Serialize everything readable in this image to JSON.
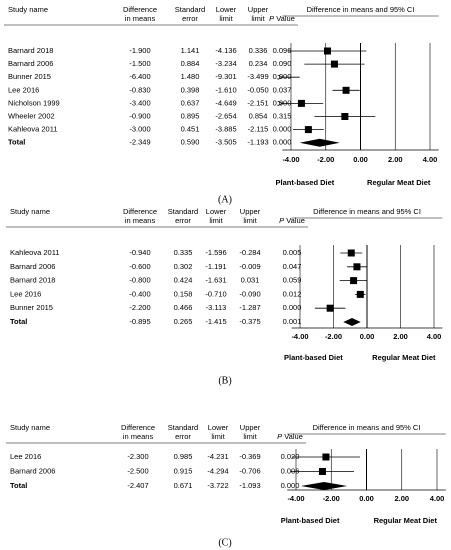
{
  "chart_data": [
    {
      "type": "forest",
      "caption": "(A)",
      "headers": {
        "study": "Study name",
        "diff": [
          "Difference",
          "in means"
        ],
        "se": [
          "Standard",
          "error"
        ],
        "lower": [
          "Lower",
          "limit"
        ],
        "upper": [
          "Upper",
          "limit"
        ],
        "p_italic": "P",
        "p_rest": "Value",
        "plot": "Difference in means and 95% CI"
      },
      "categories": [
        "Barnard 2018",
        "Barnard 2006",
        "Bunner 2015",
        "Lee 2016",
        "Nicholson 1999",
        "Wheeler 2002",
        "Kahleova 2011"
      ],
      "values": [
        -1.9,
        -1.5,
        -6.4,
        -0.83,
        -3.4,
        -0.9,
        -3.0
      ],
      "value_labels": [
        "-1.900",
        "-1.500",
        "-6.400",
        "-0.830",
        "-3.400",
        "-0.900",
        "-3.000"
      ],
      "se_labels": [
        "1.141",
        "0.884",
        "1.480",
        "0.398",
        "0.637",
        "0.895",
        "0.451"
      ],
      "lower": [
        -4.136,
        -3.234,
        -9.301,
        -1.61,
        -4.649,
        -2.654,
        -3.885
      ],
      "lower_labels": [
        "-4.136",
        "-3.234",
        "-9.301",
        "-1.610",
        "-4.649",
        "-2.654",
        "-3.885"
      ],
      "upper": [
        0.336,
        0.234,
        -3.499,
        -0.05,
        -2.151,
        0.854,
        -2.115
      ],
      "upper_labels": [
        "0.336",
        "0.234",
        "-3.499",
        "-0.050",
        "-2.151",
        "0.854",
        "-2.115"
      ],
      "p_labels": [
        "0.096",
        "0.090",
        "0.000",
        "0.037",
        "0.000",
        "0.315",
        "0.000"
      ],
      "total": {
        "name": "Total",
        "value": -2.349,
        "value_label": "-2.349",
        "se_label": "0.590",
        "lower": -3.505,
        "lower_label": "-3.505",
        "upper": -1.193,
        "upper_label": "-1.193",
        "p_label": "0.000"
      },
      "xlim": [
        -4.5,
        4.5
      ],
      "xticks": [
        {
          "value": -4,
          "label": "-4.00"
        },
        {
          "value": -2,
          "label": "-2.00"
        },
        {
          "value": 0,
          "label": "0.00"
        },
        {
          "value": 2,
          "label": "2.00"
        },
        {
          "value": 4,
          "label": "4.00"
        }
      ],
      "favours": [
        "Plant-based Diet",
        "Regular Meat Diet"
      ]
    },
    {
      "type": "forest",
      "caption": "(B)",
      "headers": {
        "study": "Study name",
        "diff": [
          "Difference",
          "in means"
        ],
        "se": [
          "Standard",
          "error"
        ],
        "lower": [
          "Lower",
          "limit"
        ],
        "upper": [
          "Upper",
          "limit"
        ],
        "p_italic": "P",
        "p_rest": "Value",
        "plot": "Difference in means and 95% CI"
      },
      "categories": [
        "Kahleova 2011",
        "Barnard 2006",
        "Barnard 2018",
        "Lee 2016",
        "Bunner 2015"
      ],
      "values": [
        -0.94,
        -0.6,
        -0.8,
        -0.4,
        -2.2
      ],
      "value_labels": [
        "-0.940",
        "-0.600",
        "-0.800",
        "-0.400",
        "-2.200"
      ],
      "se_labels": [
        "0.335",
        "0.302",
        "0.424",
        "0.158",
        "0.466"
      ],
      "lower": [
        -1.596,
        -1.191,
        -1.631,
        -0.71,
        -3.113
      ],
      "lower_labels": [
        "-1.596",
        "-1.191",
        "-1.631",
        "-0.710",
        "-3.113"
      ],
      "upper": [
        -0.284,
        -0.009,
        0.031,
        -0.09,
        -1.287
      ],
      "upper_labels": [
        "-0.284",
        "-0.009",
        "0.031",
        "-0.090",
        "-1.287"
      ],
      "p_labels": [
        "0.005",
        "0.047",
        "0.059",
        "0.012",
        "0.000"
      ],
      "total": {
        "name": "Total",
        "value": -0.895,
        "value_label": "-0.895",
        "se_label": "0.265",
        "lower": -1.415,
        "lower_label": "-1.415",
        "upper": -0.375,
        "upper_label": "-0.375",
        "p_label": "0.001"
      },
      "xlim": [
        -4.5,
        4.5
      ],
      "xticks": [
        {
          "value": -4,
          "label": "-4.00"
        },
        {
          "value": -2,
          "label": "-2.00"
        },
        {
          "value": 0,
          "label": "0.00"
        },
        {
          "value": 2,
          "label": "2.00"
        },
        {
          "value": 4,
          "label": "4.00"
        }
      ],
      "favours": [
        "Plant-based Diet",
        "Regular Meat Diet"
      ]
    },
    {
      "type": "forest",
      "caption": "(C)",
      "headers": {
        "study": "Study name",
        "diff": [
          "Difference",
          "in means"
        ],
        "se": [
          "Standard",
          "error"
        ],
        "lower": [
          "Lower",
          "limit"
        ],
        "upper": [
          "Upper",
          "limit"
        ],
        "p_italic": "P",
        "p_rest": "Value",
        "plot": "Difference in means and 95% CI"
      },
      "categories": [
        "Lee 2016",
        "Barnard 2006"
      ],
      "values": [
        -2.3,
        -2.5
      ],
      "value_labels": [
        "-2.300",
        "-2.500"
      ],
      "se_labels": [
        "0.985",
        "0.915"
      ],
      "lower": [
        -4.231,
        -4.294
      ],
      "lower_labels": [
        "-4.231",
        "-4.294"
      ],
      "upper": [
        -0.369,
        -0.706
      ],
      "upper_labels": [
        "-0.369",
        "-0.706"
      ],
      "p_labels": [
        "0.020",
        "0.006"
      ],
      "total": {
        "name": "Total",
        "value": -2.407,
        "value_label": "-2.407",
        "se_label": "0.671",
        "lower": -3.722,
        "lower_label": "-3.722",
        "upper": -1.093,
        "upper_label": "-1.093",
        "p_label": "0.000"
      },
      "xlim": [
        -4.5,
        4.5
      ],
      "xticks": [
        {
          "value": -4,
          "label": "-4.00"
        },
        {
          "value": -2,
          "label": "-2.00"
        },
        {
          "value": 0,
          "label": "0.00"
        },
        {
          "value": 2,
          "label": "2.00"
        },
        {
          "value": 4,
          "label": "4.00"
        }
      ],
      "favours": [
        "Plant-based Diet",
        "Regular Meat Diet"
      ]
    }
  ]
}
